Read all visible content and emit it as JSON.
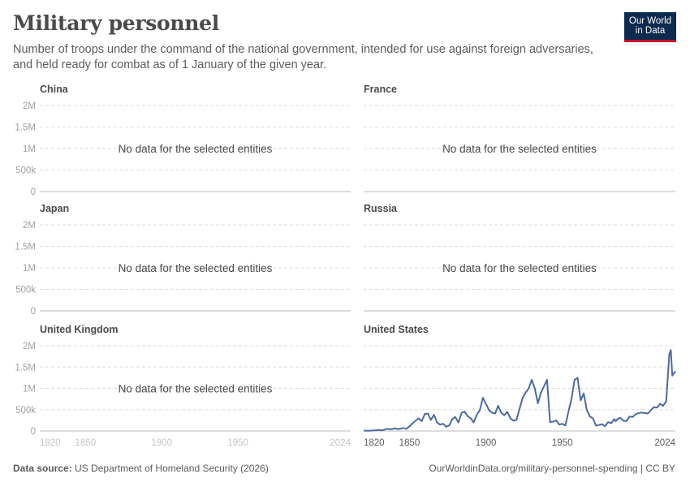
{
  "header": {
    "title": "Military personnel",
    "subtitle": "Number of troops under the command of the national government, intended for use against foreign adversaries, and held ready for combat as of 1 January of the given year."
  },
  "logo": {
    "line1": "Our World",
    "line2": "in Data"
  },
  "footer": {
    "source_label": "Data source:",
    "source_text": "US Department of Homeland Security (2026)",
    "url": "OurWorldinData.org/military-personnel-spending | CC BY"
  },
  "colors": {
    "line": "#4c6a9c",
    "grid": "#dddddd",
    "axis_text": "#a1a1a1",
    "panel_title": "#4a4a4a"
  },
  "chart_data": {
    "type": "line",
    "ylabel": "",
    "y_ticks": [
      0,
      500000,
      1000000,
      1500000,
      2000000
    ],
    "y_tick_labels": [
      "0",
      "500k",
      "1M",
      "1.5M",
      "2M"
    ],
    "ylim": [
      0,
      2000000
    ],
    "x_ticks": [
      1820,
      1850,
      1900,
      1950,
      2024
    ],
    "x_tick_labels": [
      "1820",
      "1850",
      "1900",
      "1950",
      "2024"
    ],
    "xlim": [
      1820,
      2024
    ],
    "grid": true,
    "no_data_text": "No data for the selected entities",
    "panels": [
      {
        "title": "China",
        "has_data": false
      },
      {
        "title": "France",
        "has_data": false
      },
      {
        "title": "Japan",
        "has_data": false
      },
      {
        "title": "Russia",
        "has_data": false
      },
      {
        "title": "United Kingdom",
        "has_data": false
      },
      {
        "title": "United States",
        "has_data": true,
        "series": [
          {
            "x": [
              1820,
              1823,
              1826,
              1830,
              1832,
              1835,
              1838,
              1840,
              1843,
              1846,
              1848,
              1850,
              1852,
              1854,
              1856,
              1858,
              1860,
              1862,
              1864,
              1866,
              1868,
              1870,
              1872,
              1874,
              1876,
              1878,
              1880,
              1882,
              1884,
              1886,
              1888,
              1890,
              1892,
              1894,
              1896,
              1898,
              1900,
              1902,
              1904,
              1906,
              1908,
              1910,
              1912,
              1914,
              1916,
              1918,
              1920,
              1922,
              1924,
              1926,
              1928,
              1930,
              1932,
              1934,
              1936,
              1938,
              1940,
              1942,
              1944,
              1946,
              1948,
              1950,
              1952,
              1954,
              1956,
              1958,
              1960,
              1962,
              1964,
              1966,
              1968,
              1970,
              1972,
              1974,
              1976,
              1978,
              1980,
              1982,
              1984,
              1985,
              1986,
              1988,
              1990,
              1992,
              1994,
              1996,
              1998,
              2000,
              2002,
              2004,
              2006,
              2008,
              2010,
              2012,
              2014,
              2016,
              2018,
              2020,
              2021,
              2022,
              2024
            ],
            "values": [
              10000,
              5000,
              12000,
              25000,
              15000,
              50000,
              40000,
              60000,
              45000,
              70000,
              50000,
              110000,
              180000,
              240000,
              300000,
              230000,
              400000,
              410000,
              260000,
              380000,
              200000,
              150000,
              170000,
              100000,
              130000,
              280000,
              330000,
              200000,
              420000,
              460000,
              350000,
              300000,
              200000,
              380000,
              490000,
              780000,
              640000,
              490000,
              430000,
              410000,
              590000,
              430000,
              370000,
              450000,
              300000,
              240000,
              260000,
              520000,
              780000,
              900000,
              1000000,
              1200000,
              1000000,
              650000,
              900000,
              1050000,
              1200000,
              210000,
              220000,
              250000,
              150000,
              170000,
              130000,
              450000,
              750000,
              1200000,
              1250000,
              720000,
              880000,
              500000,
              340000,
              300000,
              130000,
              140000,
              160000,
              110000,
              210000,
              180000,
              280000,
              230000,
              280000,
              310000,
              240000,
              230000,
              340000,
              330000,
              390000,
              420000,
              430000,
              420000,
              410000,
              490000,
              560000,
              550000,
              640000,
              590000,
              700000,
              1800000,
              1900000,
              1300000,
              1400000
            ]
          }
        ]
      }
    ]
  }
}
